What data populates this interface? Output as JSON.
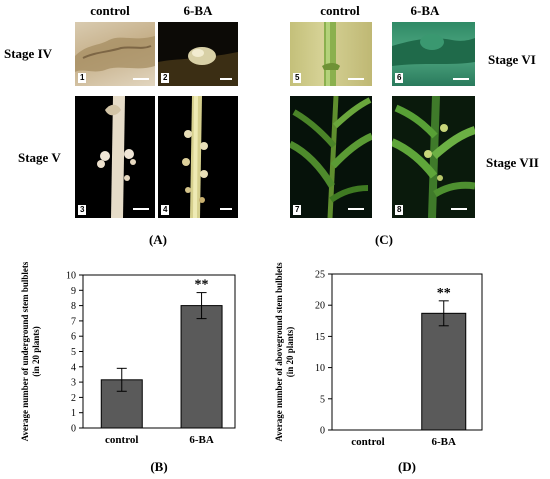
{
  "photos": {
    "left_headers": [
      "control",
      "6-BA"
    ],
    "right_headers": [
      "control",
      "6-BA"
    ],
    "stages": [
      "Stage IV",
      "Stage V",
      "Stage VI",
      "Stage VII"
    ],
    "panel_numbers": [
      "1",
      "2",
      "3",
      "4",
      "5",
      "6",
      "7",
      "8"
    ],
    "label_a": "(A)",
    "label_c": "(C)"
  },
  "chart_data": [
    {
      "type": "bar",
      "panel_label": "(B)",
      "categories": [
        "control",
        "6-BA"
      ],
      "values": [
        3.15,
        8.0
      ],
      "errors": [
        0.75,
        0.85
      ],
      "annotations": [
        "",
        "**"
      ],
      "ylabel_line1": "Average number of underground stem bulblets",
      "ylabel_line2": "(in 20 plants)",
      "ylim": [
        0,
        10
      ],
      "yticks": [
        0,
        1,
        2,
        3,
        4,
        5,
        6,
        7,
        8,
        9,
        10
      ],
      "bar_color": "#5a5a5a"
    },
    {
      "type": "bar",
      "panel_label": "(D)",
      "categories": [
        "control",
        "6-BA"
      ],
      "values": [
        0,
        18.7
      ],
      "errors": [
        0,
        2.0
      ],
      "annotations": [
        "",
        "**"
      ],
      "ylabel_line1": "Average number of aboveground stem bulblets",
      "ylabel_line2": "(in 20 plants)",
      "ylim": [
        0,
        25
      ],
      "yticks": [
        0,
        5,
        10,
        15,
        20,
        25
      ],
      "bar_color": "#5a5a5a"
    }
  ]
}
